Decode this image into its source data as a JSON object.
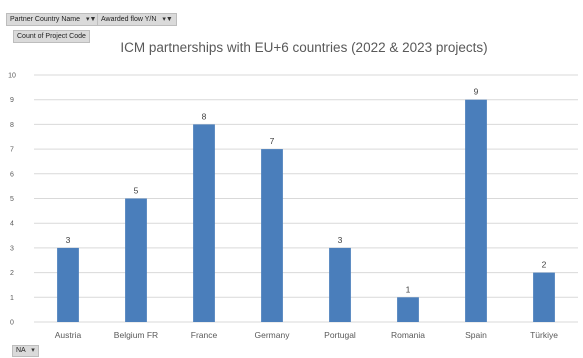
{
  "pivot": {
    "filters": [
      {
        "label": "Partner Country Name",
        "icon": "filter-icon"
      },
      {
        "label": "Awarded flow Y/N",
        "icon": "filter-icon"
      }
    ],
    "values_field": "Count of Project Code",
    "axis_field": {
      "label": "NA",
      "icon": "dropdown-arrow-icon"
    }
  },
  "chart_data": {
    "type": "bar",
    "title": "ICM partnerships with EU+6 countries (2022 & 2023 projects)",
    "categories": [
      "Austria",
      "Belgium FR",
      "France",
      "Germany",
      "Portugal",
      "Romania",
      "Spain",
      "Türkiye"
    ],
    "values": [
      3,
      5,
      8,
      7,
      3,
      1,
      9,
      2
    ],
    "ylim": [
      0,
      10
    ],
    "yticks": [
      0,
      1,
      2,
      3,
      4,
      5,
      6,
      7,
      8,
      9,
      10
    ],
    "grid": true,
    "legend": "none",
    "data_labels": true,
    "bar_color": "#4a7ebb",
    "grid_color": "#d9d9d9"
  }
}
